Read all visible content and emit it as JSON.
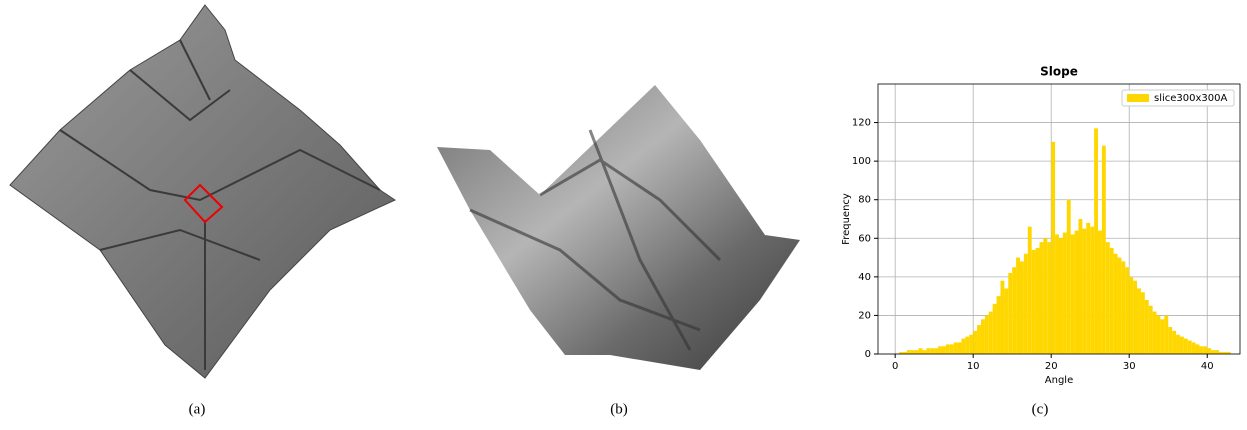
{
  "captions": [
    "(a)",
    "(b)",
    "(c)"
  ],
  "chart_data": {
    "type": "histogram",
    "title": "Slope",
    "x_label": "Angle",
    "y_label": "Frequency",
    "bins": [
      0,
      0.5,
      1,
      1.5,
      2,
      2.5,
      3,
      3.5,
      4,
      4.5,
      5,
      5.5,
      6,
      6.5,
      7,
      7.5,
      8,
      8.5,
      9,
      9.5,
      10,
      10.5,
      11,
      11.5,
      12,
      12.5,
      13,
      13.5,
      14,
      14.5,
      15,
      15.5,
      16,
      16.5,
      17,
      17.5,
      18,
      18.5,
      19,
      19.5,
      20,
      20.5,
      21,
      21.5,
      22,
      22.5,
      23,
      23.5,
      24,
      24.5,
      25,
      25.5,
      26,
      26.5,
      27,
      27.5,
      28,
      28.5,
      29,
      29.5,
      30,
      30.5,
      31,
      31.5,
      32,
      32.5,
      33,
      33.5,
      34,
      34.5,
      35,
      35.5,
      36,
      36.5,
      37,
      37.5,
      38,
      38.5,
      39,
      39.5,
      40,
      40.5,
      41,
      41.5,
      42,
      42.5,
      43
    ],
    "series": [
      {
        "name": "slice300x300A",
        "color": "#ffd700",
        "values": [
          0,
          1,
          1,
          2,
          2,
          2,
          3,
          2,
          3,
          3,
          3,
          4,
          4,
          5,
          5,
          6,
          6,
          8,
          9,
          10,
          12,
          15,
          18,
          20,
          22,
          26,
          30,
          38,
          34,
          42,
          45,
          50,
          48,
          52,
          66,
          54,
          55,
          58,
          60,
          58,
          110,
          62,
          60,
          63,
          80,
          62,
          64,
          70,
          65,
          68,
          66,
          117,
          64,
          108,
          58,
          55,
          52,
          50,
          48,
          45,
          40,
          38,
          34,
          32,
          28,
          25,
          22,
          20,
          18,
          20,
          14,
          12,
          10,
          9,
          8,
          7,
          6,
          5,
          4,
          4,
          3,
          2,
          2,
          1,
          1,
          1
        ]
      }
    ],
    "xlim": [
      -2.2,
      44.2
    ],
    "ylim": [
      0,
      140
    ],
    "xticks": [
      0,
      10,
      20,
      30,
      40
    ],
    "yticks": [
      0,
      20,
      40,
      60,
      80,
      100,
      120
    ],
    "grid": true,
    "legend": "upper right"
  }
}
